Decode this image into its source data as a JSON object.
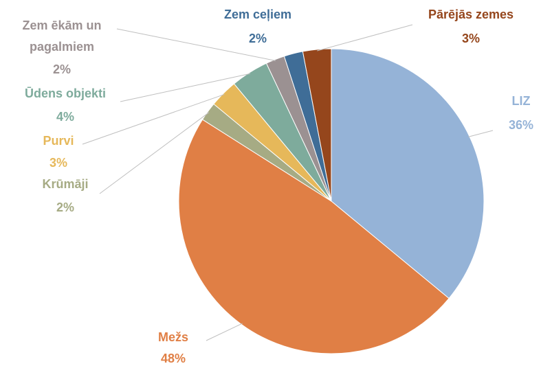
{
  "chart_data": {
    "type": "pie",
    "categories": [
      "LIZ",
      "Mežs",
      "Krūmāji",
      "Purvi",
      "Ūdens objekti",
      "Zem ēkām un pagalmiem",
      "Zem ceļiem",
      "Pārējās zemes"
    ],
    "values": [
      36,
      48,
      2,
      3,
      4,
      2,
      2,
      3
    ],
    "value_labels": [
      "36%",
      "48%",
      "2%",
      "3%",
      "4%",
      "2%",
      "2%",
      "3%"
    ],
    "colors": [
      "#95b3d7",
      "#e07f45",
      "#a6ab84",
      "#e6b85a",
      "#7eab9c",
      "#9b9192",
      "#3f6d97",
      "#95461c"
    ]
  }
}
